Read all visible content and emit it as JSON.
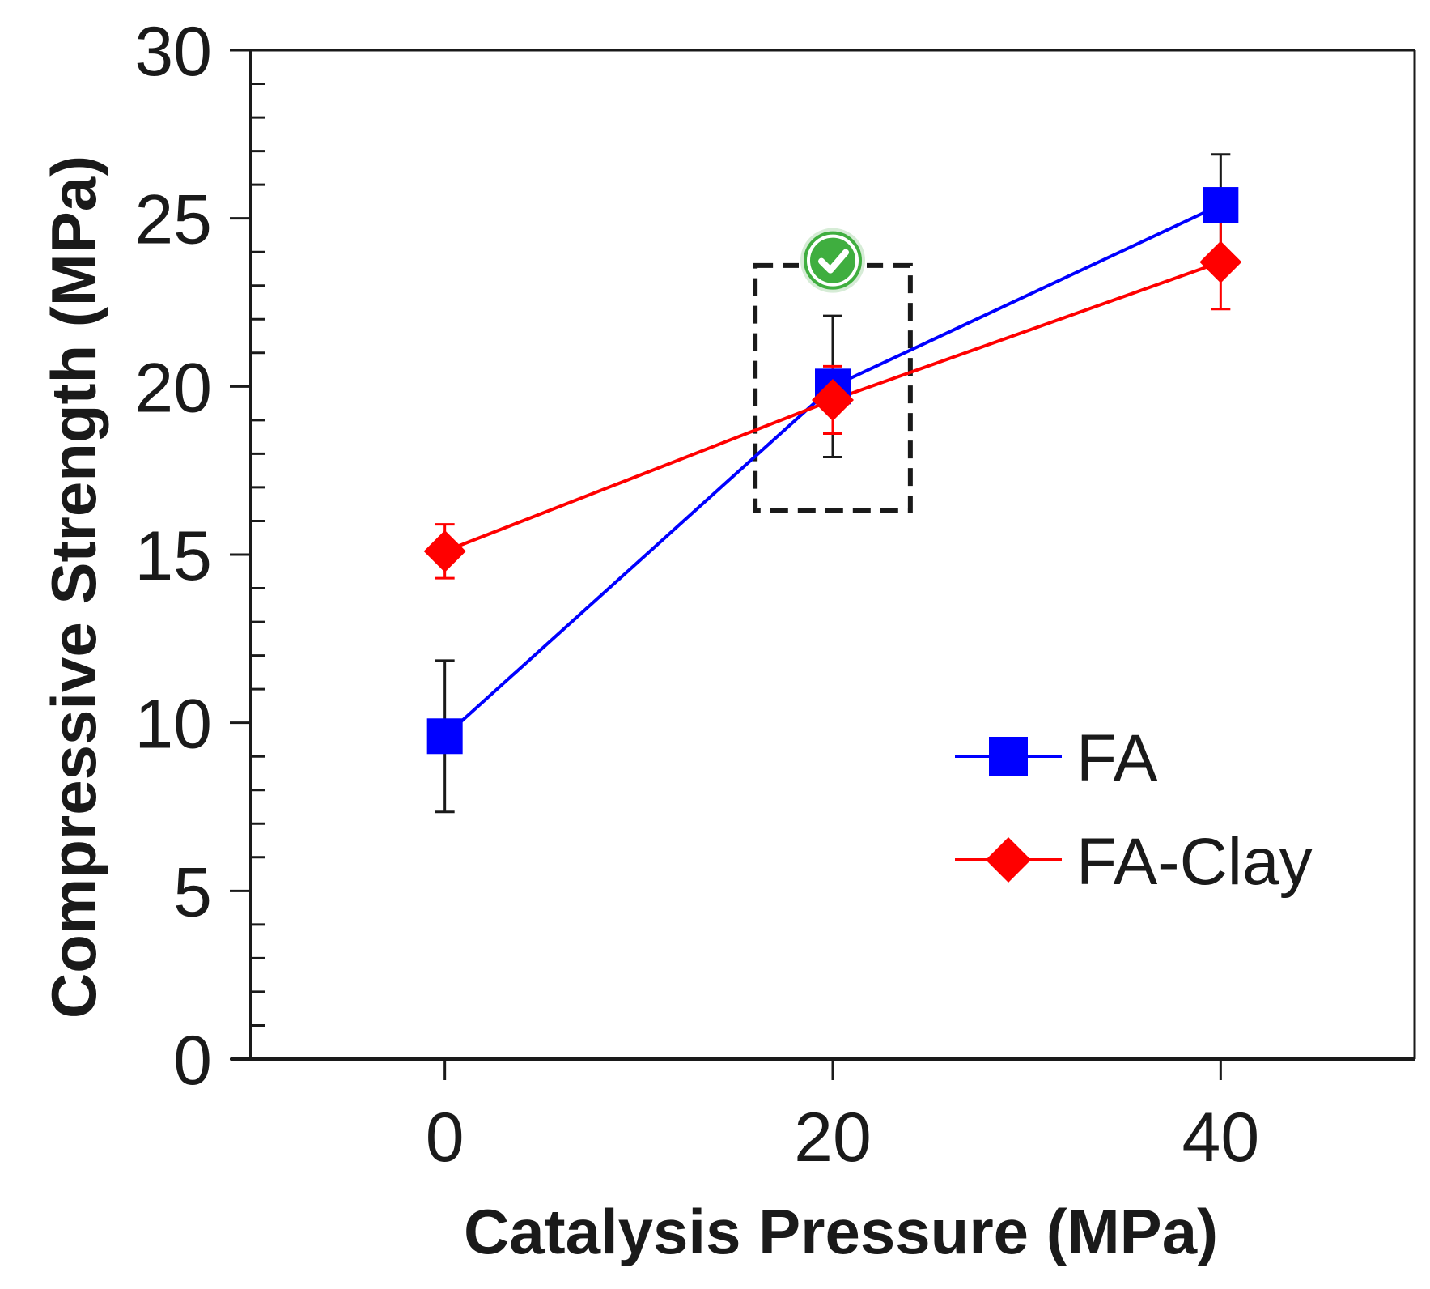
{
  "chart_data": {
    "type": "line",
    "title": "",
    "xlabel": "Catalysis Pressure (MPa)",
    "ylabel": "Compressive Strength (MPa)",
    "xlim": [
      -10,
      50
    ],
    "ylim": [
      0,
      30
    ],
    "x_ticks": [
      0,
      20,
      40
    ],
    "x_tick_labels": [
      "0",
      "20",
      "40"
    ],
    "y_ticks": [
      0,
      5,
      10,
      15,
      20,
      25,
      30
    ],
    "y_tick_labels": [
      "0",
      "5",
      "10",
      "15",
      "20",
      "25",
      "30"
    ],
    "y_minor_step": 1,
    "grid": false,
    "legend_position": "right-middle",
    "x": [
      0,
      20,
      40
    ],
    "series": [
      {
        "name": "FA",
        "color": "#0000ff",
        "marker": "square",
        "values": [
          9.6,
          20.0,
          25.4
        ],
        "errors": [
          2.25,
          2.1,
          1.5
        ]
      },
      {
        "name": "FA-Clay",
        "color": "#ff0000",
        "marker": "diamond",
        "values": [
          15.1,
          19.6,
          23.7
        ],
        "errors": [
          0.8,
          1.0,
          1.4
        ]
      }
    ],
    "annotations": [
      {
        "type": "dashed-box",
        "x_range": [
          16,
          24
        ],
        "y_range": [
          16.3,
          23.6
        ],
        "color": "#1a1a1a"
      },
      {
        "type": "check-badge",
        "icon": "check-circle-icon",
        "x": 20,
        "y": 23.7,
        "color": "#3fae3f"
      }
    ]
  }
}
